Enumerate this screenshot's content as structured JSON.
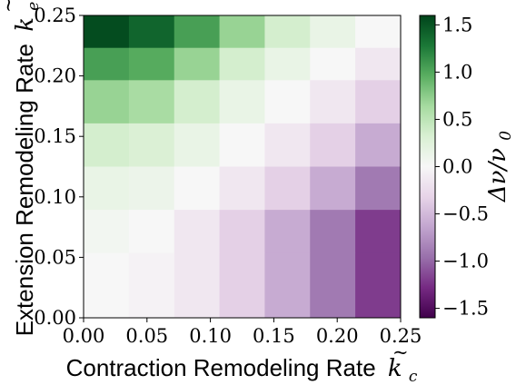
{
  "chart_data": {
    "type": "heatmap",
    "xlabel": "Contraction Remodeling Rate",
    "xlabel_symbol": "k",
    "xlabel_subscript": "c",
    "ylabel": "Extension Remodeling Rate",
    "ylabel_symbol": "k",
    "ylabel_subscript": "e",
    "colorbar_label": "Δν/ν",
    "colorbar_label_subscript": "0",
    "x_ticks": [
      "0.00",
      "0.05",
      "0.10",
      "0.15",
      "0.20",
      "0.25"
    ],
    "y_ticks": [
      "0.00",
      "0.05",
      "0.10",
      "0.15",
      "0.20",
      "0.25"
    ],
    "colorbar_ticks": [
      "1.5",
      "1.0",
      "0.5",
      "0.0",
      "−0.5",
      "−1.0",
      "−1.5"
    ],
    "colorbar_tick_values": [
      1.5,
      1.0,
      0.5,
      0.0,
      -0.5,
      -1.0,
      -1.5
    ],
    "xlim": [
      0,
      0.25
    ],
    "ylim": [
      0,
      0.25
    ],
    "clim": [
      -1.6,
      1.6
    ],
    "colormap": "PRGn",
    "x_centers": [
      0.0179,
      0.0536,
      0.0893,
      0.125,
      0.1607,
      0.1964,
      0.2321
    ],
    "y_centers": [
      0.2321,
      0.2143,
      0.1786,
      0.1429,
      0.1071,
      0.0714,
      0.0357
    ],
    "values": [
      [
        1.55,
        1.4,
        1.05,
        0.7,
        0.35,
        0.15,
        0.0
      ],
      [
        1.05,
        0.98,
        0.7,
        0.35,
        0.15,
        0.0,
        -0.15
      ],
      [
        0.7,
        0.62,
        0.35,
        0.15,
        0.0,
        -0.15,
        -0.35
      ],
      [
        0.35,
        0.3,
        0.15,
        0.0,
        -0.15,
        -0.35,
        -0.6
      ],
      [
        0.15,
        0.12,
        0.0,
        -0.15,
        -0.35,
        -0.6,
        -0.9
      ],
      [
        0.05,
        0.0,
        -0.15,
        -0.35,
        -0.6,
        -0.9,
        -1.2
      ],
      [
        0.0,
        -0.05,
        -0.15,
        -0.35,
        -0.6,
        -0.9,
        -1.2
      ]
    ],
    "grid": false
  }
}
